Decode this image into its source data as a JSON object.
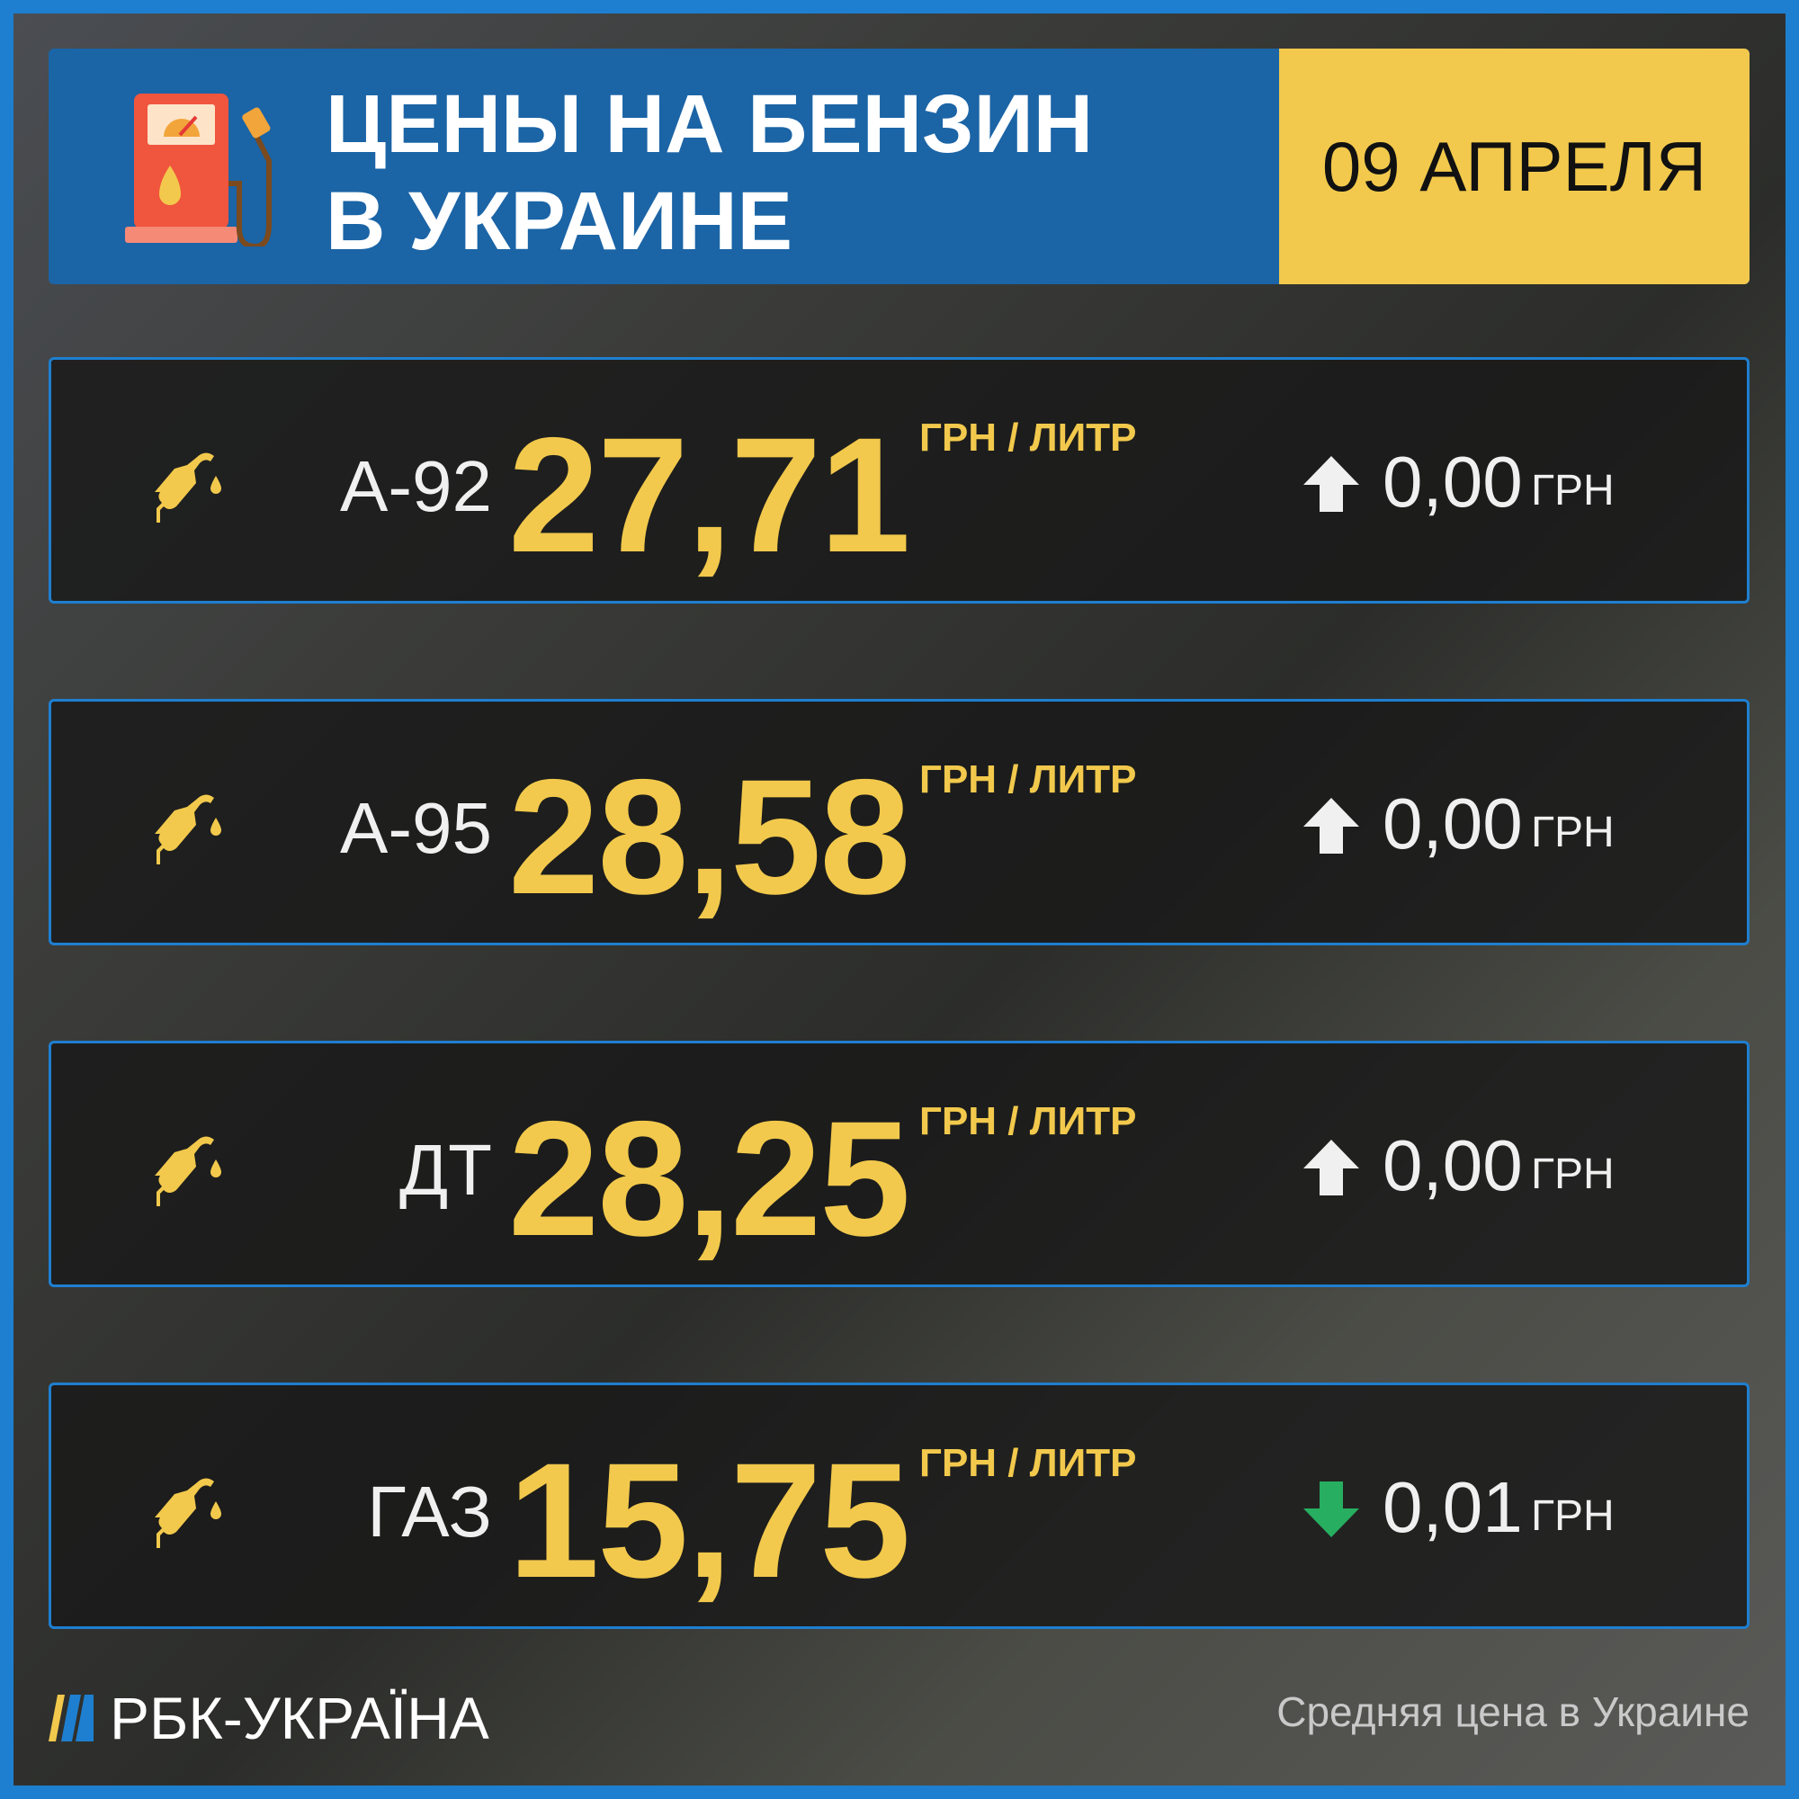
{
  "header": {
    "title_line1": "ЦЕНЫ НА БЕНЗИН",
    "title_line2": "В УКРАИНЕ",
    "date": "09 АПРЕЛЯ"
  },
  "colors": {
    "accent_blue": "#1b64a6",
    "border_blue": "#1e7fd0",
    "yellow": "#f2c94c",
    "up_arrow": "#f0f0f0",
    "down_arrow": "#27ae60"
  },
  "rows": [
    {
      "fuel": "А-92",
      "price": "27,71",
      "unit": "ГРН / ЛИТР",
      "direction": "up",
      "change": "0,00",
      "currency": "ГРН"
    },
    {
      "fuel": "А-95",
      "price": "28,58",
      "unit": "ГРН / ЛИТР",
      "direction": "up",
      "change": "0,00",
      "currency": "ГРН"
    },
    {
      "fuel": "ДТ",
      "price": "28,25",
      "unit": "ГРН / ЛИТР",
      "direction": "up",
      "change": "0,00",
      "currency": "ГРН"
    },
    {
      "fuel": "ГАЗ",
      "price": "15,75",
      "unit": "ГРН / ЛИТР",
      "direction": "down",
      "change": "0,01",
      "currency": "ГРН"
    }
  ],
  "footer": {
    "brand": "РБК-УКРАЇНА",
    "note": "Средняя цена в Украине"
  }
}
